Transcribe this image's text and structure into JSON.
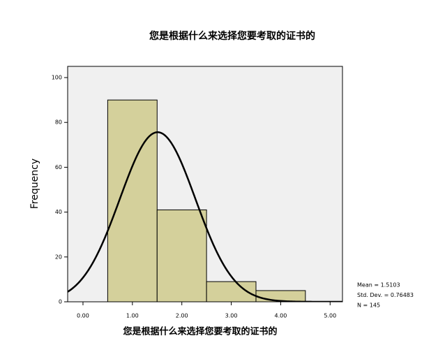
{
  "chart_data": {
    "type": "histogram",
    "title": "您是根据什么来选择您要考取的证书的",
    "xlabel": "您是根据什么来选择您要考取的证书的",
    "ylabel": "Frequency",
    "bins": [
      0.5,
      1.5,
      2.5,
      3.5,
      4.5
    ],
    "values": [
      90,
      41,
      9,
      5
    ],
    "color": "#d4d09b",
    "curve_color": "#000000",
    "background": "#f0f0f0",
    "xlim": [
      -0.31,
      5.25
    ],
    "ylim": [
      0,
      105
    ],
    "xticks": [
      {
        "value": 0,
        "label": "0.00"
      },
      {
        "value": 1,
        "label": "1.00"
      },
      {
        "value": 2,
        "label": "2.00"
      },
      {
        "value": 3,
        "label": "3.00"
      },
      {
        "value": 4,
        "label": "4.00"
      },
      {
        "value": 5,
        "label": "5.00"
      }
    ],
    "yticks": [
      0,
      20,
      40,
      60,
      80,
      100
    ],
    "stats": [
      {
        "value": 1.5103,
        "label": "Mean = 1.5103"
      },
      {
        "value": 0.76483,
        "label": "Std. Dev. = 0.76483"
      },
      {
        "value": 145,
        "label": "N = 145"
      }
    ]
  }
}
